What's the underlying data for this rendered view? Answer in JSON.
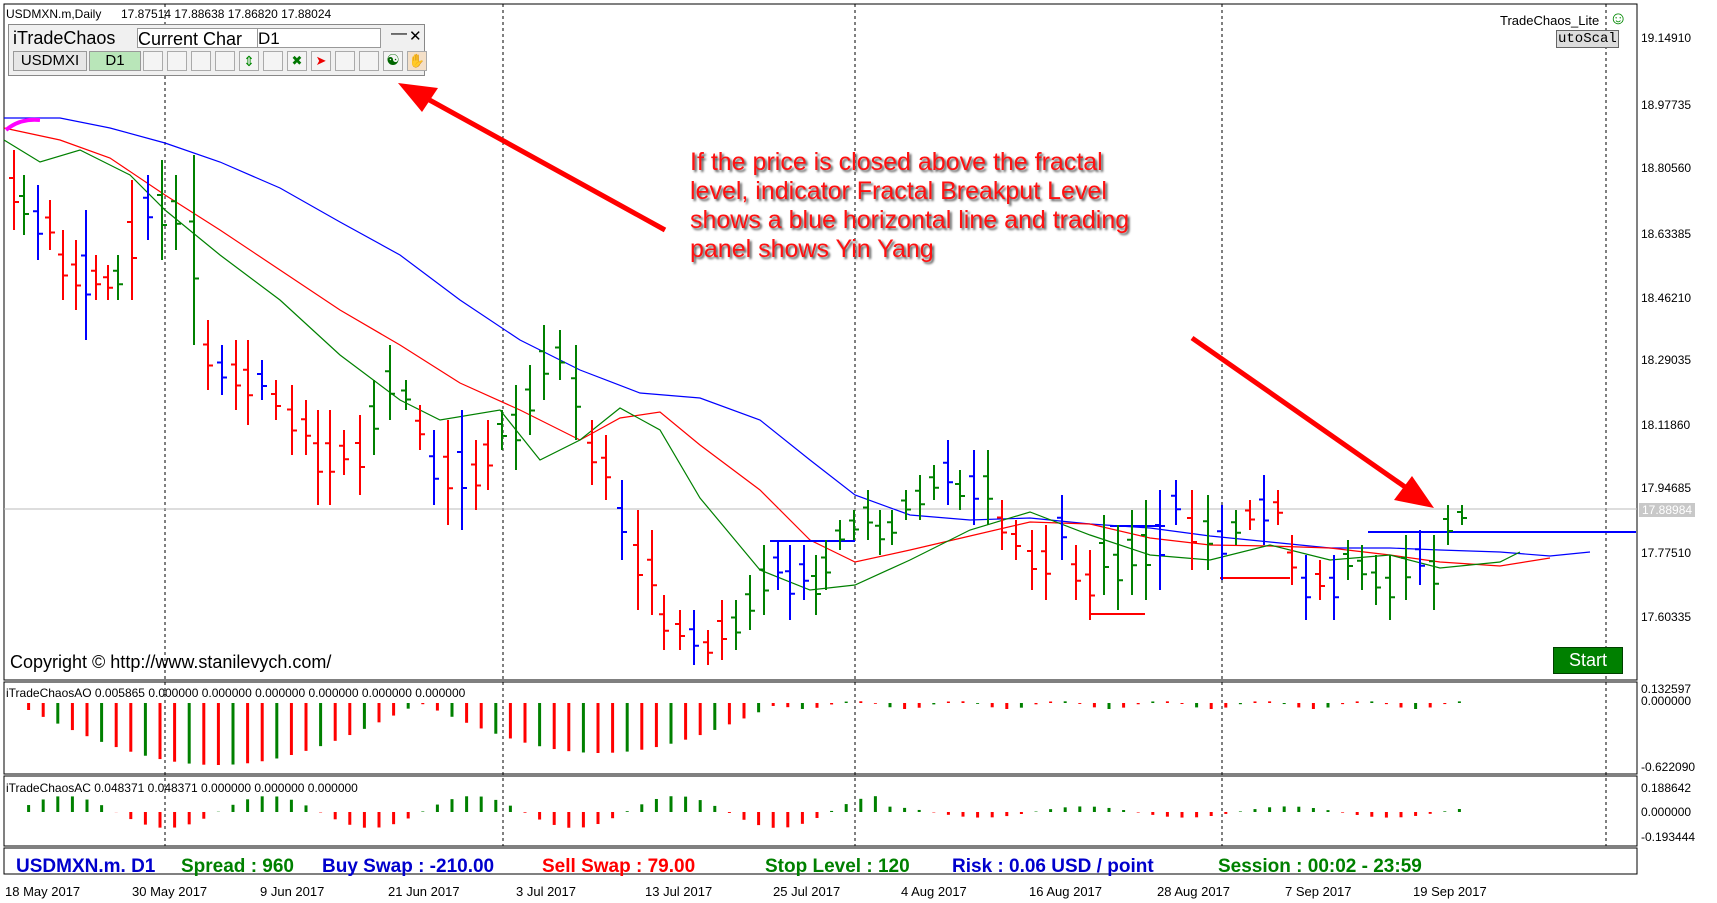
{
  "chart_header": {
    "symbol_title": "USDMXN.m,Daily",
    "ohlc": "17.87514 17.88638 17.86820 17.88024"
  },
  "trade_panel": {
    "title": "iTradeChaos",
    "mode_select": "Current Char",
    "timeframe_select": "D1",
    "symbol_button": "USDMXI",
    "timeframe_button": "D1",
    "minimize_icon": "minimize-icon",
    "close_icon": "close-icon",
    "yin_yang_icon": "yin-yang-icon"
  },
  "top_right": {
    "expert_name": "TradeChaos_Lite",
    "autoscale_label": "utoScal"
  },
  "annotation_text": [
    "If the price is closed above the fractal",
    "level, indicator Fractal Breakput Level",
    "shows a blue horizontal line and trading",
    "panel shows Yin Yang"
  ],
  "copyright": "Copyright © http://www.stanilevych.com/",
  "start_button": "Start",
  "price_axis": {
    "labels": [
      "19.14910",
      "18.97735",
      "18.80560",
      "18.63385",
      "18.46210",
      "18.29035",
      "18.11860",
      "17.94685",
      "17.77510",
      "17.60335"
    ],
    "current_price": "17.88984"
  },
  "ao_panel": {
    "title": "iTradeChaosAO 0.005865 0.000000 0.000000 0.000000 0.000000 0.000000 0.000000",
    "scale_top": "0.132597",
    "scale_zero": "0.000000",
    "scale_bottom": "-0.622090"
  },
  "ac_panel": {
    "title": "iTradeChaosAC 0.048371 0.048371 0.000000 0.000000 0.000000",
    "scale_top": "0.188642",
    "scale_zero": "0.000000",
    "scale_bottom": "-0.193444"
  },
  "info_bar": {
    "symbol": "USDMXN.m. D1",
    "spread": "Spread :  960",
    "buy_swap": "Buy Swap :  -210.00",
    "sell_swap": "Sell Swap :  79.00",
    "stop_level": "Stop Level :  120",
    "risk": "Risk :  0.06 USD / point",
    "session": "Session :  00:02 - 23:59"
  },
  "date_axis": [
    "18 May 2017",
    "30 May 2017",
    "9 Jun 2017",
    "21 Jun 2017",
    "3 Jul 2017",
    "13 Jul 2017",
    "25 Jul 2017",
    "4 Aug 2017",
    "16 Aug 2017",
    "28 Aug 2017",
    "7 Sep 2017",
    "19 Sep 2017"
  ],
  "colors": {
    "bull_bar": "#008000",
    "bear_bar": "#ff0000",
    "squat_bar": "#0000ff",
    "jaw": "#0000ff",
    "teeth": "#ff0000",
    "lips": "#008000",
    "annotation": "#ff1010",
    "arrow": "#ff0000"
  }
}
